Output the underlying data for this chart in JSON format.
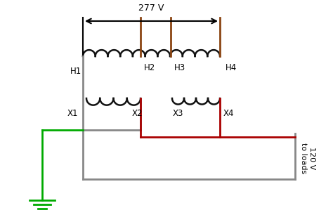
{
  "bg_color": "#ffffff",
  "coil_color": "#111111",
  "wire_gray": "#888888",
  "wire_red": "#aa0000",
  "wire_green": "#00aa00",
  "wire_brown": "#8B4513",
  "arrow_label": "277 V",
  "voltage_label": "120 V\nto loads",
  "h_labels": [
    "H1",
    "H2",
    "H3",
    "H4"
  ],
  "x_labels": [
    "X1",
    "X2",
    "X3",
    "X4"
  ],
  "figsize": [
    4.74,
    3.16
  ],
  "dpi": 100
}
